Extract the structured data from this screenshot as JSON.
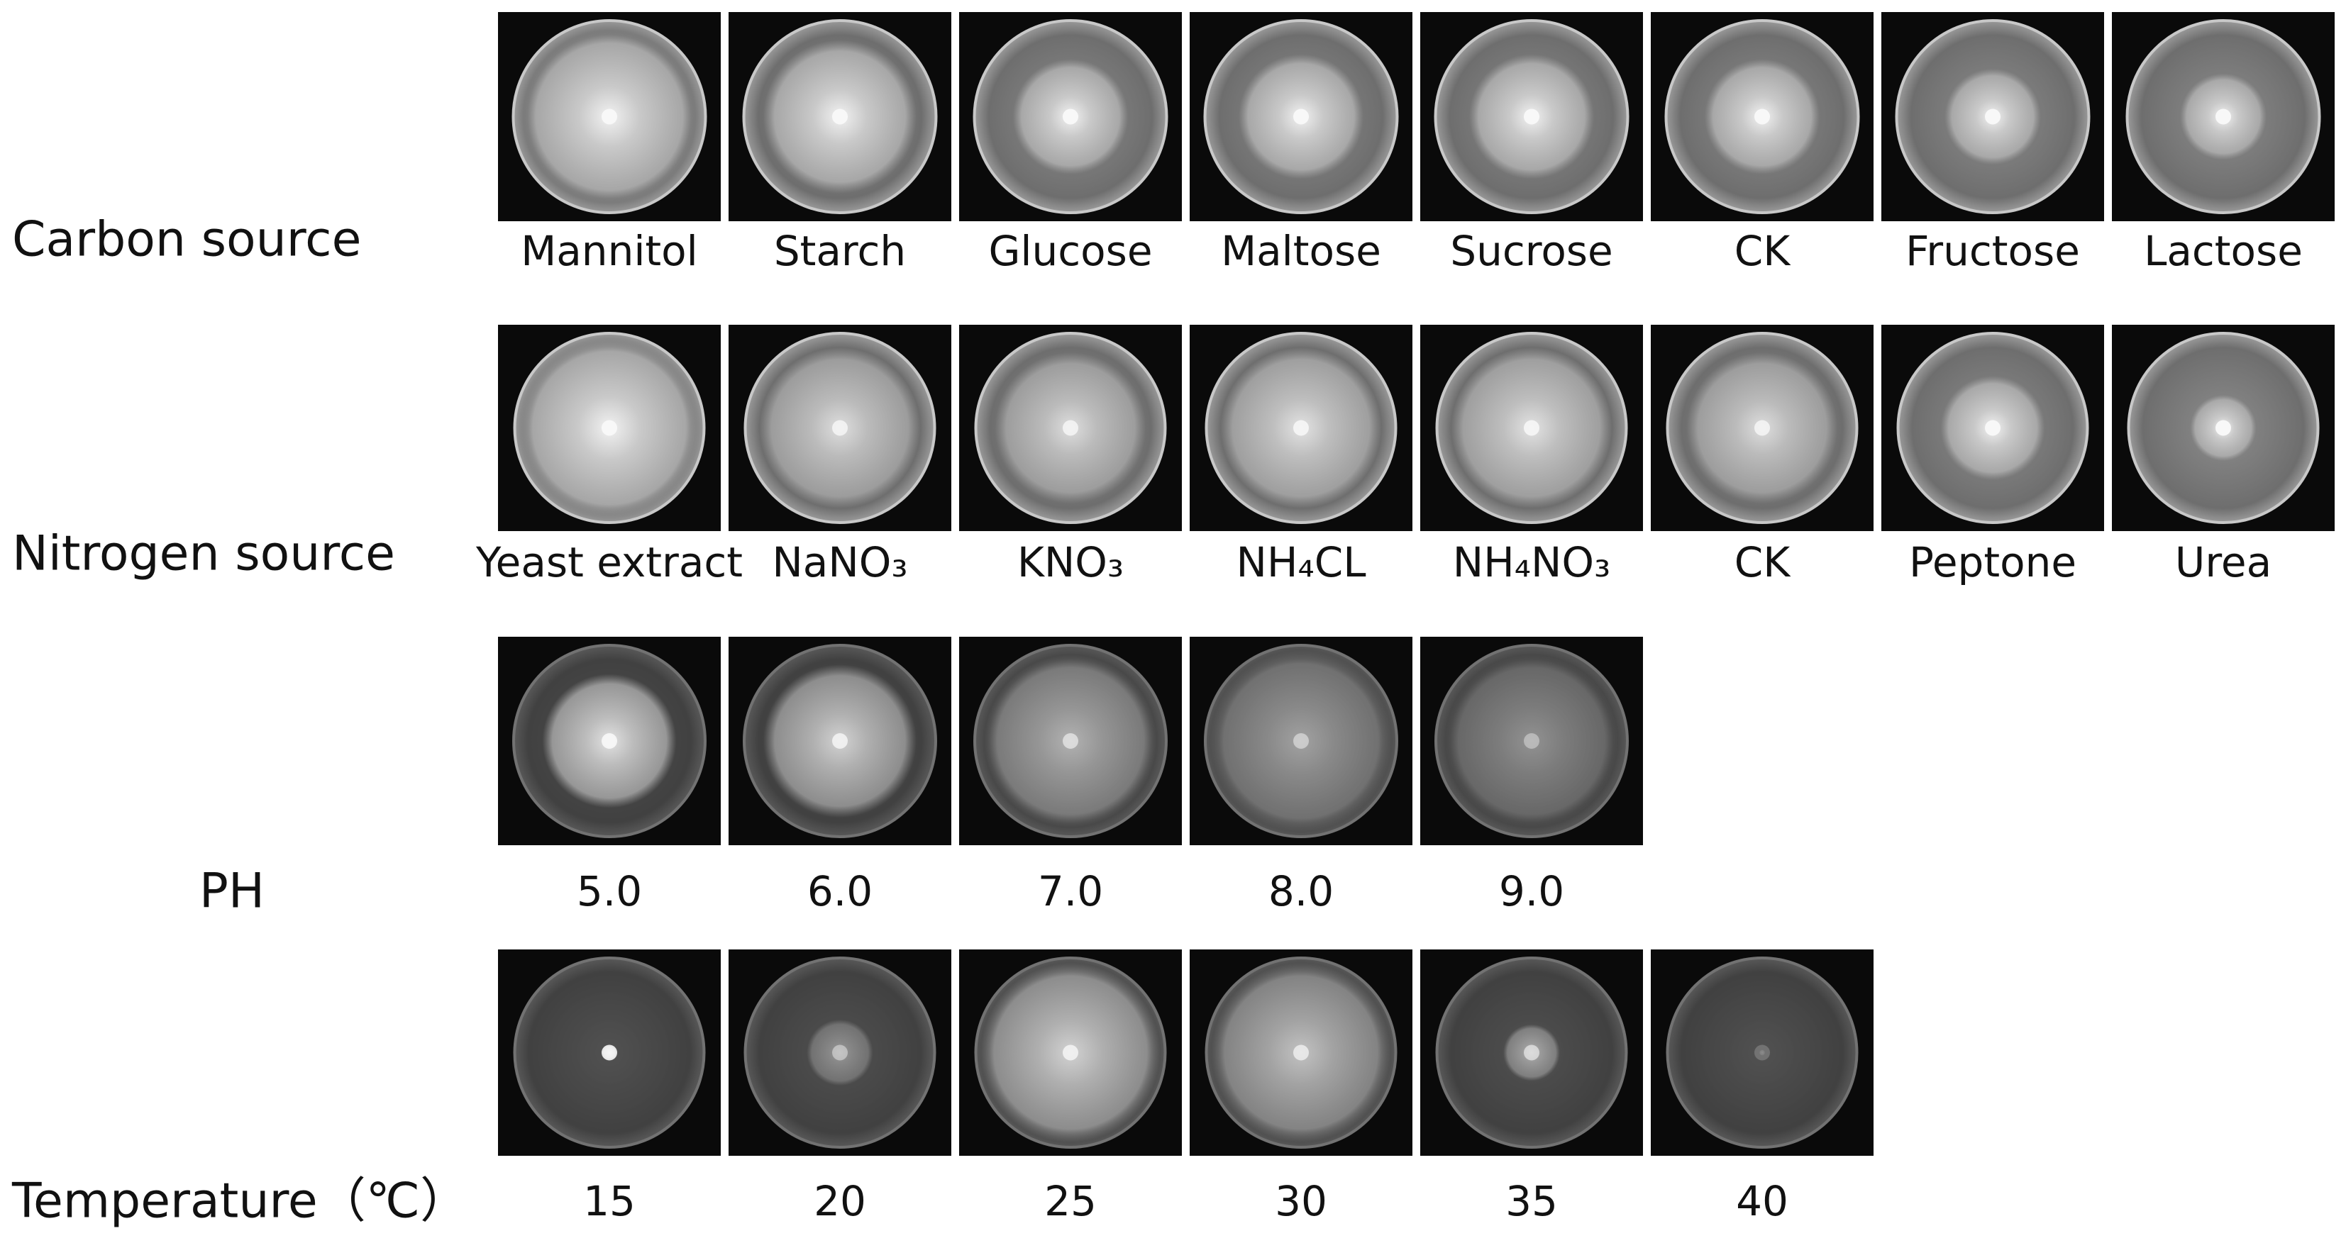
{
  "rows": [
    {
      "label": "Carbon source",
      "items": [
        "Mannitol",
        "Starch",
        "Glucose",
        "Maltose",
        "Sucrose",
        "CK",
        "Fructose",
        "Lactose"
      ]
    },
    {
      "label": "Nitrogen source",
      "items": [
        "Yeast extract",
        "NaNO₃",
        "KNO₃",
        "NH₄CL",
        "NH₄NO₃",
        "CK",
        "Peptone",
        "Urea"
      ]
    },
    {
      "label": "PH",
      "items": [
        "5.0",
        "6.0",
        "7.0",
        "8.0",
        "9.0"
      ]
    },
    {
      "label": "Temperature（℃）",
      "items": [
        "15",
        "20",
        "25",
        "30",
        "35",
        "40"
      ]
    }
  ]
}
